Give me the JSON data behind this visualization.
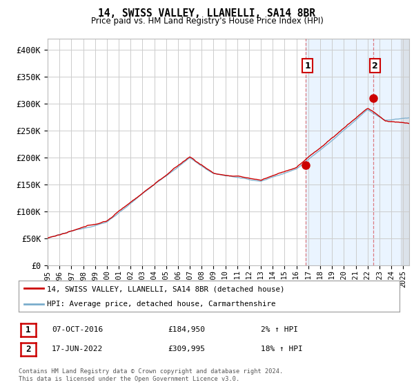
{
  "title": "14, SWISS VALLEY, LLANELLI, SA14 8BR",
  "subtitle": "Price paid vs. HM Land Registry's House Price Index (HPI)",
  "ylabel_ticks": [
    "£0",
    "£50K",
    "£100K",
    "£150K",
    "£200K",
    "£250K",
    "£300K",
    "£350K",
    "£400K"
  ],
  "ytick_values": [
    0,
    50000,
    100000,
    150000,
    200000,
    250000,
    300000,
    350000,
    400000
  ],
  "ylim": [
    0,
    420000
  ],
  "xlim_start": 1995.0,
  "xlim_end": 2025.5,
  "red_line_color": "#cc0000",
  "blue_line_color": "#7aadcc",
  "marker_color": "#cc0000",
  "sale1_x": 2016.77,
  "sale1_y": 184950,
  "sale2_x": 2022.46,
  "sale2_y": 309995,
  "annotation1_label": "1",
  "annotation2_label": "2",
  "legend_line1": "14, SWISS VALLEY, LLANELLI, SA14 8BR (detached house)",
  "legend_line2": "HPI: Average price, detached house, Carmarthenshire",
  "table_row1_num": "1",
  "table_row1_date": "07-OCT-2016",
  "table_row1_price": "£184,950",
  "table_row1_hpi": "2% ↑ HPI",
  "table_row2_num": "2",
  "table_row2_date": "17-JUN-2022",
  "table_row2_price": "£309,995",
  "table_row2_hpi": "18% ↑ HPI",
  "footer": "Contains HM Land Registry data © Crown copyright and database right 2024.\nThis data is licensed under the Open Government Licence v3.0.",
  "background_color": "#ffffff",
  "plot_bg_color": "#ffffff",
  "grid_color": "#cccccc",
  "xtick_years": [
    1995,
    1996,
    1997,
    1998,
    1999,
    2000,
    2001,
    2002,
    2003,
    2004,
    2005,
    2006,
    2007,
    2008,
    2009,
    2010,
    2011,
    2012,
    2013,
    2014,
    2015,
    2016,
    2017,
    2018,
    2019,
    2020,
    2021,
    2022,
    2023,
    2024,
    2025
  ],
  "vline_color": "#cc0000",
  "vline_alpha": 0.5,
  "shade_color": "#ddeeff",
  "shade_alpha": 0.6,
  "hatch_color": "#cccccc"
}
